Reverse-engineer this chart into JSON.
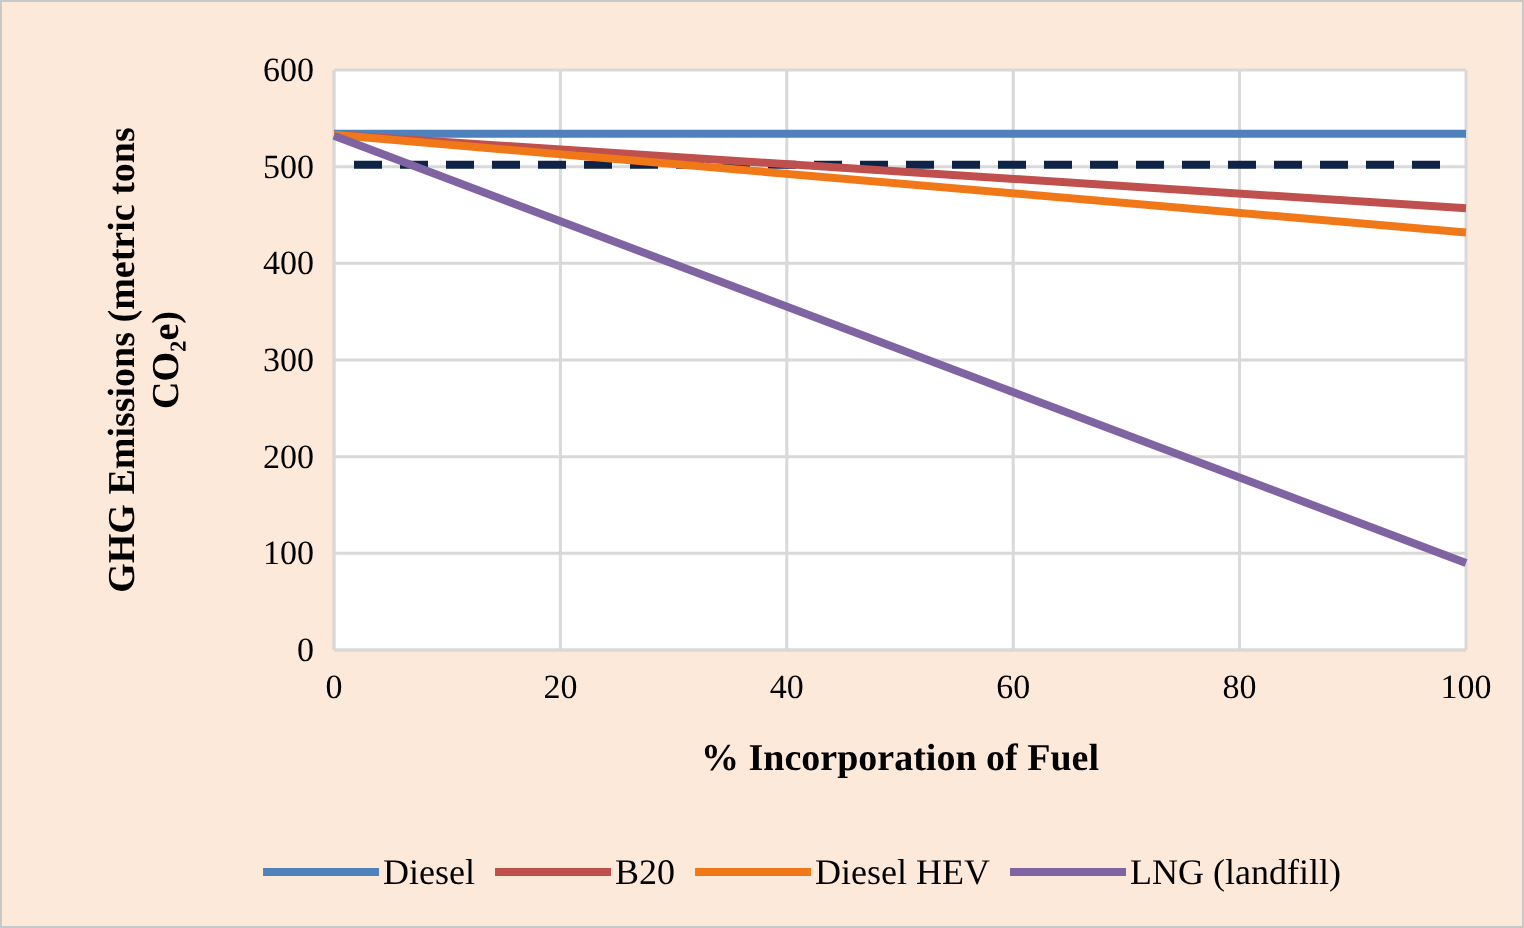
{
  "chart_data": {
    "type": "line",
    "xlabel": "% Incorporation of Fuel",
    "ylabel": "GHG Emissions (metric tons CO₂e)",
    "x": [
      0,
      100
    ],
    "series": [
      {
        "name": "Diesel",
        "color": "#4f81bd",
        "values": [
          534,
          534
        ]
      },
      {
        "name": "B20",
        "color": "#c0504d",
        "values": [
          533,
          457
        ]
      },
      {
        "name": "Diesel HEV",
        "color": "#f07818",
        "values": [
          533,
          432
        ]
      },
      {
        "name": "LNG (landfill)",
        "color": "#8064a2",
        "values": [
          532,
          90
        ]
      }
    ],
    "ref_lines": [
      {
        "axis": "y",
        "value": 502,
        "color": "#0f2346",
        "line_style": "dashed"
      }
    ],
    "xlim": [
      0,
      100
    ],
    "xticks": [
      0,
      20,
      40,
      60,
      80,
      100
    ],
    "ylim": [
      0,
      600
    ],
    "yticks": [
      0,
      100,
      200,
      300,
      400,
      500,
      600
    ],
    "grid": true,
    "legend": "bottom",
    "marker": "none",
    "line_style": "solid"
  }
}
